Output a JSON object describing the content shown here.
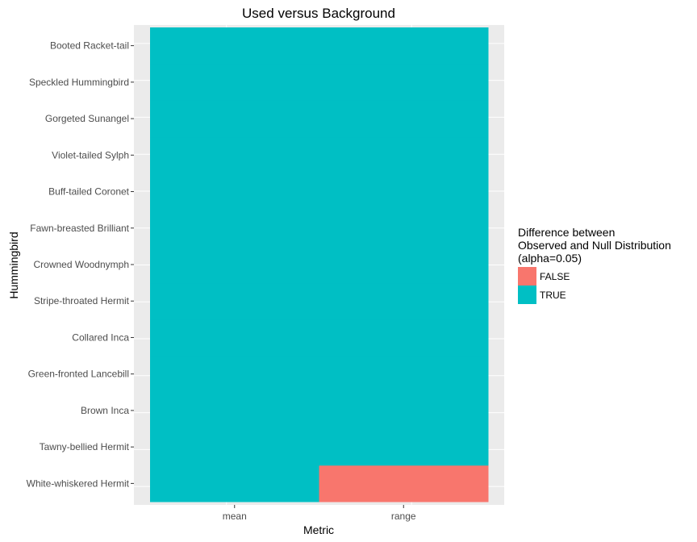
{
  "chart_data": {
    "type": "heatmap",
    "title": "Used versus Background",
    "xlabel": "Metric",
    "ylabel": "Hummingbird",
    "x_categories": [
      "mean",
      "range"
    ],
    "y_categories": [
      "White-whiskered Hermit",
      "Tawny-bellied Hermit",
      "Brown Inca",
      "Green-fronted Lancebill",
      "Collared Inca",
      "Stripe-throated Hermit",
      "Crowned Woodnymph",
      "Fawn-breasted Brilliant",
      "Buff-tailed Coronet",
      "Violet-tailed Sylph",
      "Gorgeted Sunangel",
      "Speckled Hummingbird",
      "Booted Racket-tail"
    ],
    "cells": [
      {
        "x": "mean",
        "y": "White-whiskered Hermit",
        "value": "TRUE"
      },
      {
        "x": "range",
        "y": "White-whiskered Hermit",
        "value": "FALSE"
      },
      {
        "x": "mean",
        "y": "Tawny-bellied Hermit",
        "value": "TRUE"
      },
      {
        "x": "range",
        "y": "Tawny-bellied Hermit",
        "value": "TRUE"
      },
      {
        "x": "mean",
        "y": "Brown Inca",
        "value": "TRUE"
      },
      {
        "x": "range",
        "y": "Brown Inca",
        "value": "TRUE"
      },
      {
        "x": "mean",
        "y": "Green-fronted Lancebill",
        "value": "TRUE"
      },
      {
        "x": "range",
        "y": "Green-fronted Lancebill",
        "value": "TRUE"
      },
      {
        "x": "mean",
        "y": "Collared Inca",
        "value": "TRUE"
      },
      {
        "x": "range",
        "y": "Collared Inca",
        "value": "TRUE"
      },
      {
        "x": "mean",
        "y": "Stripe-throated Hermit",
        "value": "TRUE"
      },
      {
        "x": "range",
        "y": "Stripe-throated Hermit",
        "value": "TRUE"
      },
      {
        "x": "mean",
        "y": "Crowned Woodnymph",
        "value": "TRUE"
      },
      {
        "x": "range",
        "y": "Crowned Woodnymph",
        "value": "TRUE"
      },
      {
        "x": "mean",
        "y": "Fawn-breasted Brilliant",
        "value": "TRUE"
      },
      {
        "x": "range",
        "y": "Fawn-breasted Brilliant",
        "value": "TRUE"
      },
      {
        "x": "mean",
        "y": "Buff-tailed Coronet",
        "value": "TRUE"
      },
      {
        "x": "range",
        "y": "Buff-tailed Coronet",
        "value": "TRUE"
      },
      {
        "x": "mean",
        "y": "Violet-tailed Sylph",
        "value": "TRUE"
      },
      {
        "x": "range",
        "y": "Violet-tailed Sylph",
        "value": "TRUE"
      },
      {
        "x": "mean",
        "y": "Gorgeted Sunangel",
        "value": "TRUE"
      },
      {
        "x": "range",
        "y": "Gorgeted Sunangel",
        "value": "TRUE"
      },
      {
        "x": "mean",
        "y": "Speckled Hummingbird",
        "value": "TRUE"
      },
      {
        "x": "range",
        "y": "Speckled Hummingbird",
        "value": "TRUE"
      },
      {
        "x": "mean",
        "y": "Booted Racket-tail",
        "value": "TRUE"
      },
      {
        "x": "range",
        "y": "Booted Racket-tail",
        "value": "TRUE"
      }
    ],
    "legend": {
      "title_lines": [
        "Difference between",
        "Observed and Null Distribution",
        "(alpha=0.05)"
      ],
      "entries": [
        {
          "label": "FALSE",
          "color": "#f8766d"
        },
        {
          "label": "TRUE",
          "color": "#00bfc4"
        }
      ],
      "position": "right"
    },
    "colors": {
      "panel_background": "#ebebeb",
      "grid": "#ffffff",
      "FALSE": "#f8766d",
      "TRUE": "#00bfc4"
    },
    "grid": true
  }
}
